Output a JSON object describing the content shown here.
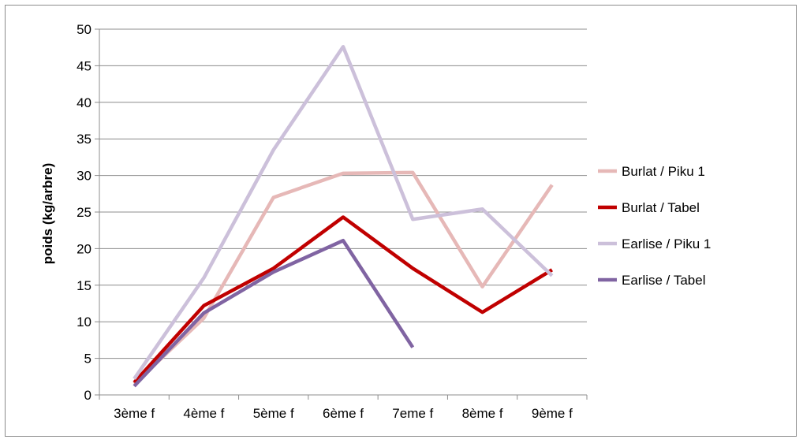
{
  "chart_data": {
    "type": "line",
    "title": "",
    "xlabel": "",
    "ylabel": "poids (kg/arbre)",
    "categories": [
      "3ème f",
      "4ème f",
      "5ème f",
      "6ème f",
      "7eme f",
      "8ème f",
      "9ème f"
    ],
    "ylim": [
      0,
      50
    ],
    "yticks": [
      0,
      5,
      10,
      15,
      20,
      25,
      30,
      35,
      40,
      45,
      50
    ],
    "grid": true,
    "legend_position": "right",
    "series": [
      {
        "name": "Burlat / Piku 1",
        "color": "#e6b8b7",
        "values": [
          1.5,
          10.5,
          27,
          30.3,
          30.4,
          14.8,
          28.7
        ]
      },
      {
        "name": "Burlat / Tabel",
        "color": "#c00000",
        "values": [
          1.7,
          12.2,
          17.3,
          24.3,
          17.3,
          11.3,
          17.1
        ]
      },
      {
        "name": "Earlise / Piku 1",
        "color": "#ccc0da",
        "values": [
          2.2,
          16,
          33.5,
          47.6,
          24,
          25.4,
          16.3
        ]
      },
      {
        "name": "Earlise / Tabel",
        "color": "#8064a2",
        "values": [
          1.2,
          11.2,
          16.8,
          21.1,
          6.5,
          null,
          null
        ]
      }
    ]
  }
}
